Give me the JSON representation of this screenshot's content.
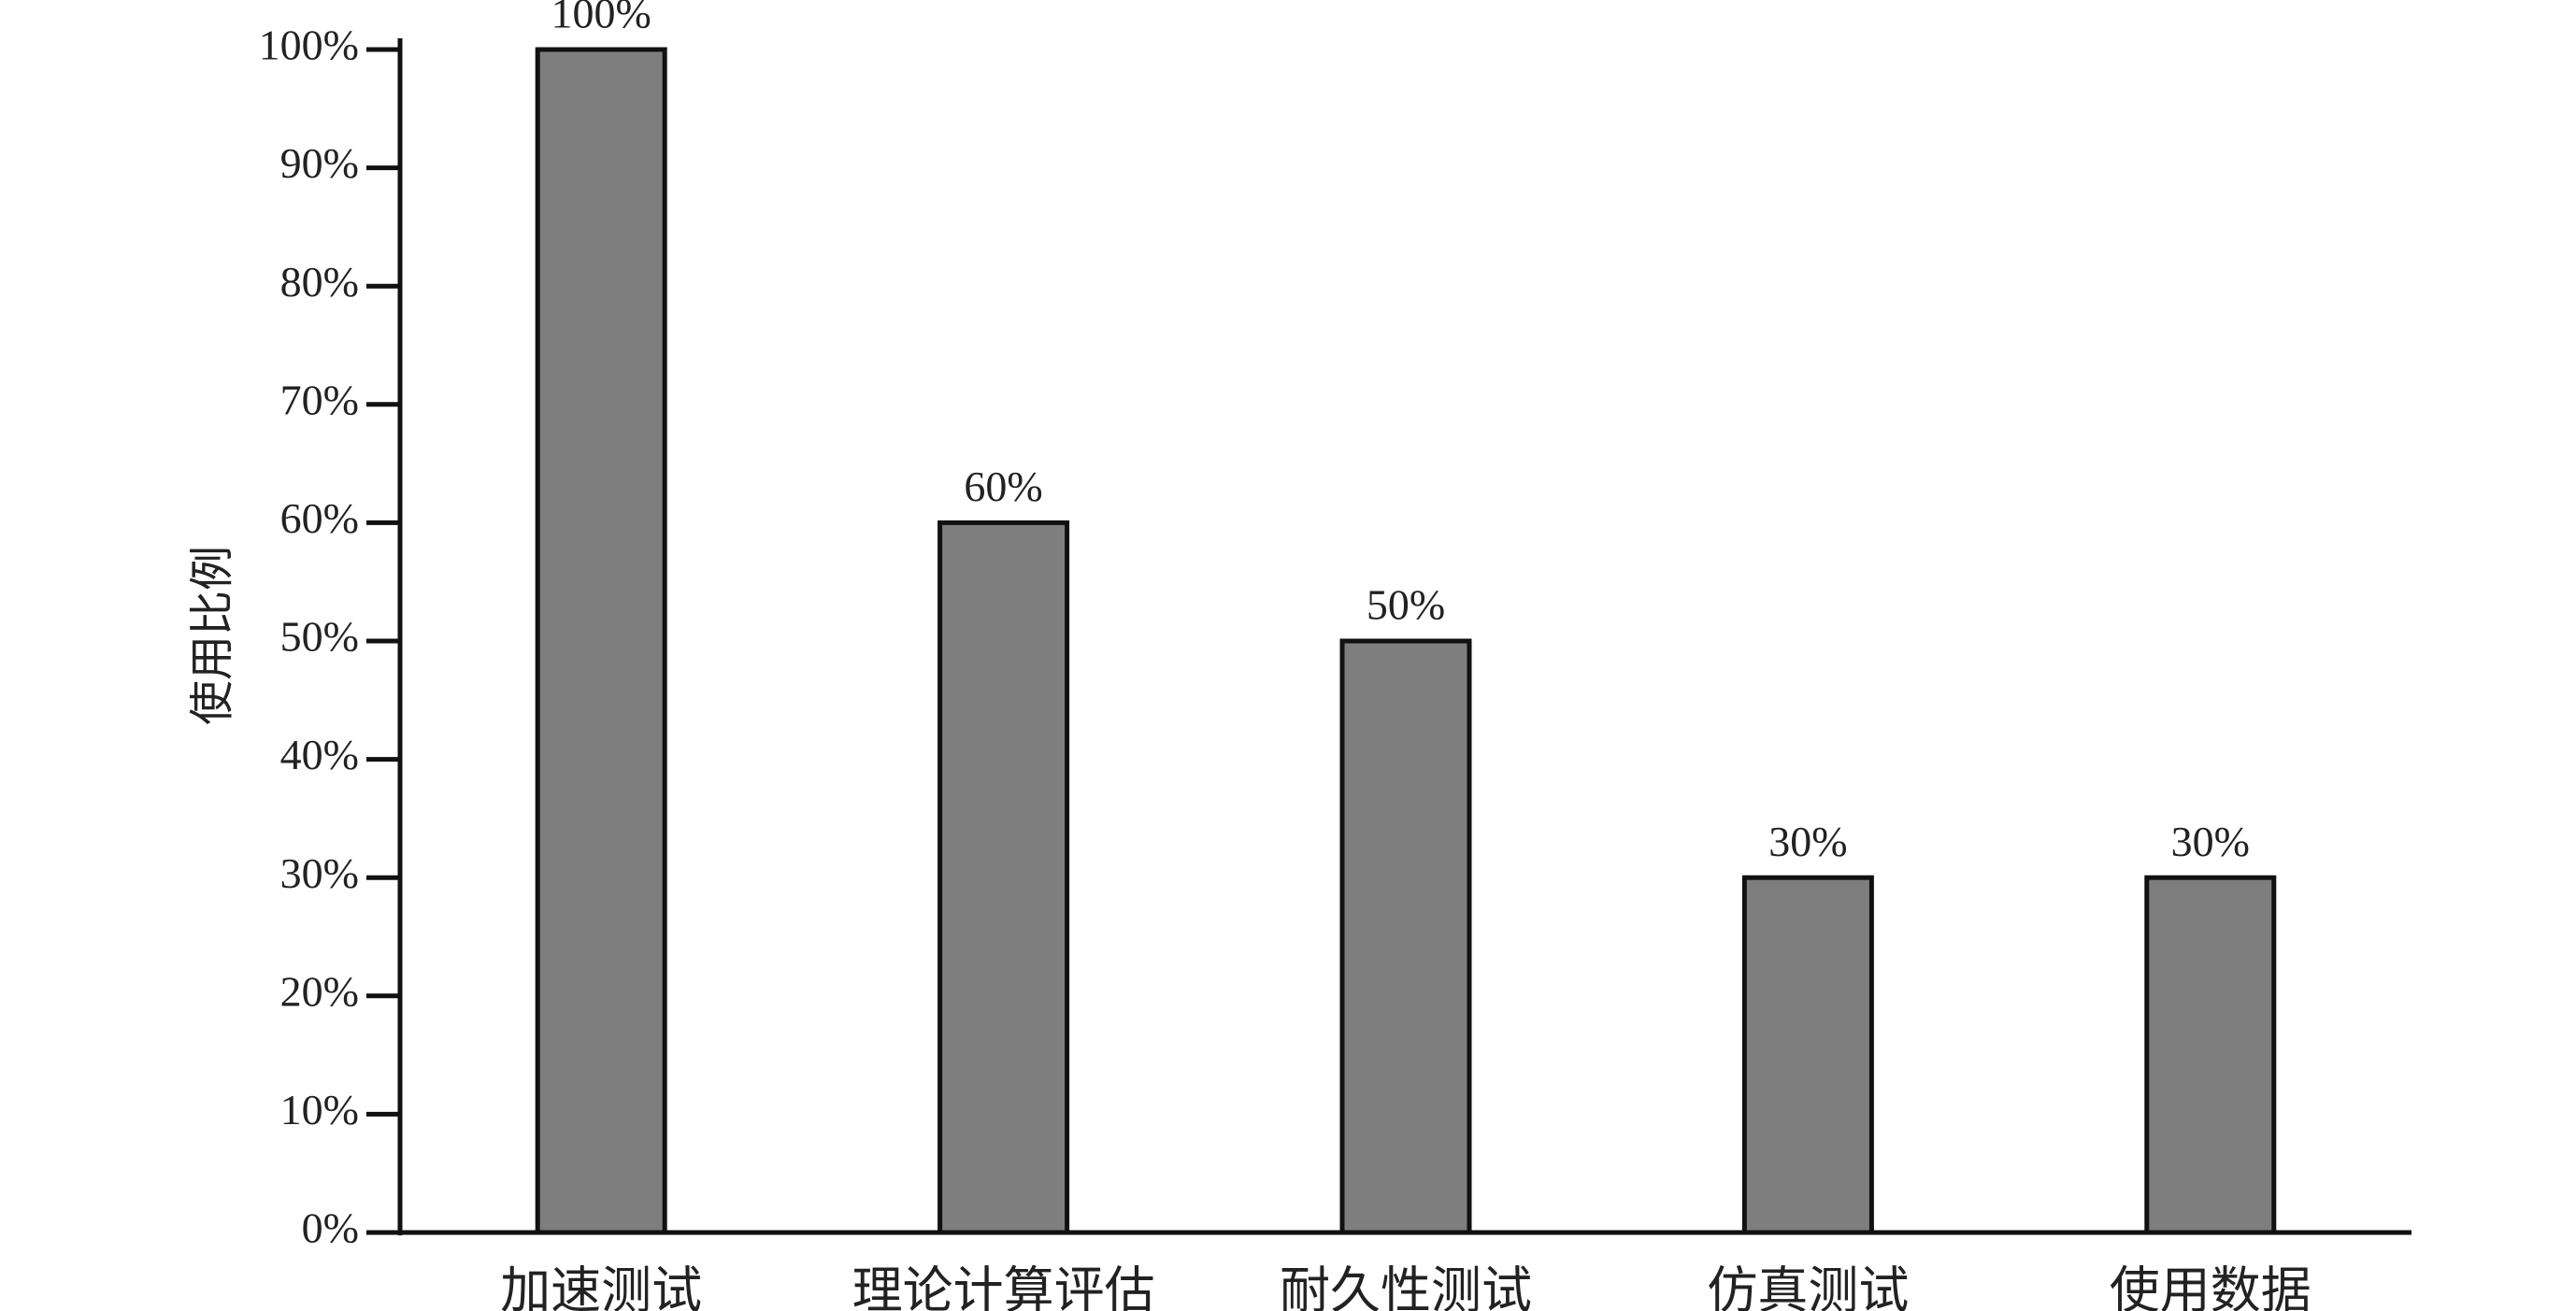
{
  "chart_data": {
    "type": "bar",
    "y_label": "使用比例",
    "categories": [
      "加速测试",
      "理论计算评估",
      "耐久性测试",
      "仿真测试",
      "使用数据"
    ],
    "values": [
      100,
      60,
      50,
      30,
      30
    ],
    "value_labels": [
      "100%",
      "60%",
      "50%",
      "30%",
      "30%"
    ],
    "color": "#7f7e7e",
    "ylim": [
      0,
      100
    ],
    "yticks": [
      {
        "value": 0,
        "label": "0%"
      },
      {
        "value": 10,
        "label": "10%"
      },
      {
        "value": 20,
        "label": "20%"
      },
      {
        "value": 30,
        "label": "30%"
      },
      {
        "value": 40,
        "label": "40%"
      },
      {
        "value": 50,
        "label": "50%"
      },
      {
        "value": 60,
        "label": "60%"
      },
      {
        "value": 70,
        "label": "70%"
      },
      {
        "value": 80,
        "label": "80%"
      },
      {
        "value": 90,
        "label": "90%"
      },
      {
        "value": 100,
        "label": "100%"
      }
    ],
    "grid": false
  }
}
